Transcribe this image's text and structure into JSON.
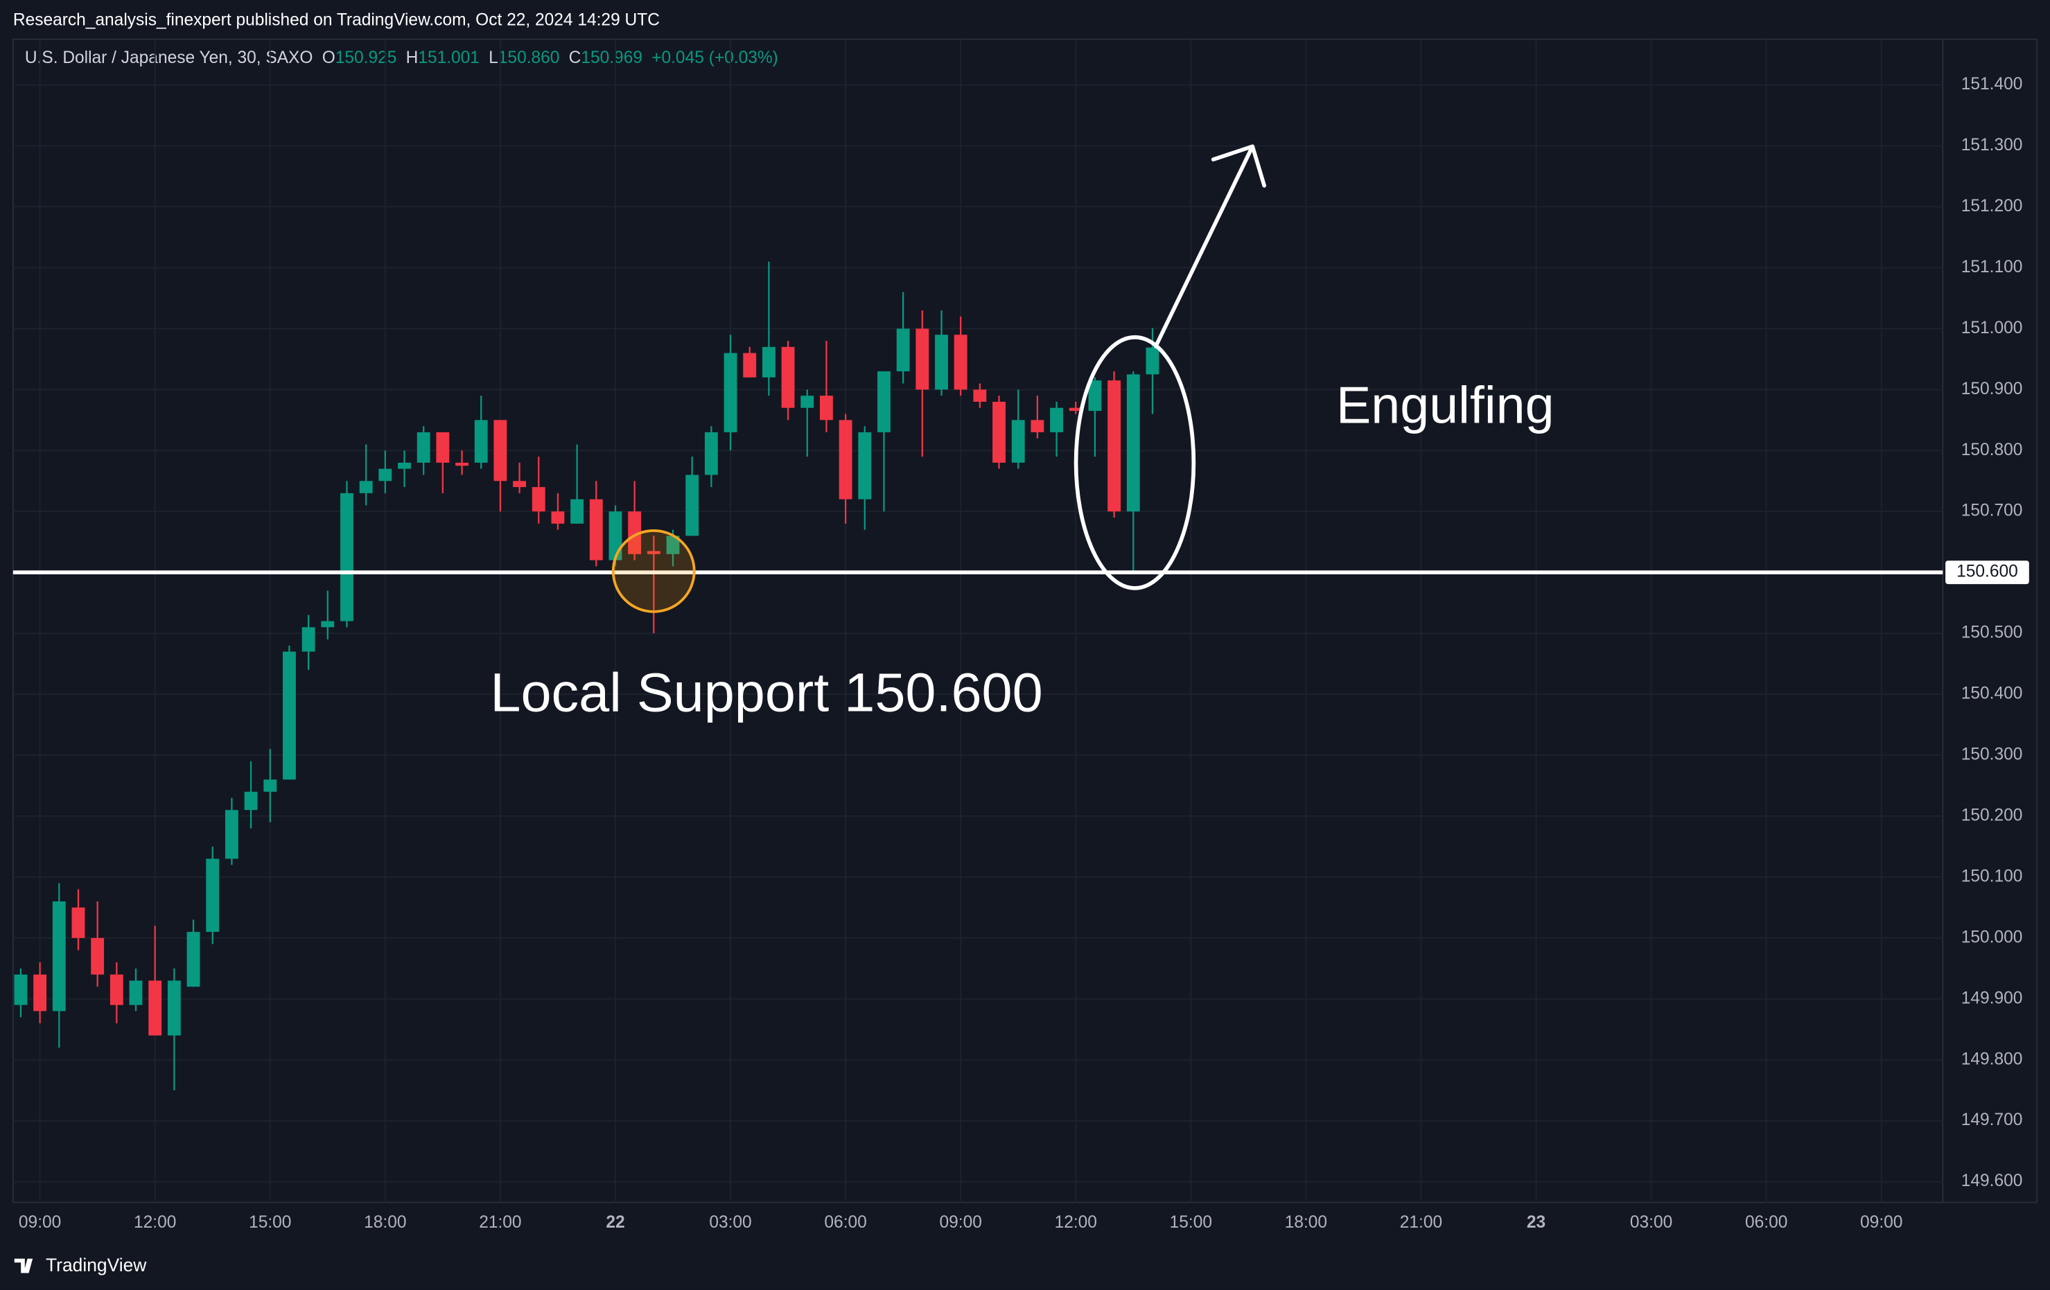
{
  "header": "Research_analysis_finexpert published on TradingView.com, Oct 22, 2024 14:29 UTC",
  "footer": "TradingView",
  "chart_data": {
    "type": "candlestick",
    "title": "U.S. Dollar / Japanese Yen, 30, SAXO",
    "quote": [
      {
        "key": "O",
        "value": "150.925"
      },
      {
        "key": "H",
        "value": "151.001"
      },
      {
        "key": "L",
        "value": "150.860"
      },
      {
        "key": "C",
        "value": "150.969"
      }
    ],
    "change": "+0.045 (+0.03%)",
    "up_color": "#089981",
    "down_color": "#f23645",
    "open": [
      149.89,
      149.94,
      149.88,
      150.05,
      150.0,
      149.94,
      149.89,
      149.93,
      149.84,
      149.92,
      150.01,
      150.13,
      150.21,
      150.24,
      150.26,
      150.47,
      150.51,
      150.52,
      150.73,
      150.75,
      150.77,
      150.78,
      150.83,
      150.78,
      150.78,
      150.85,
      150.75,
      150.74,
      150.7,
      150.68,
      150.72,
      150.62,
      150.7,
      150.635,
      150.63,
      150.66,
      150.76,
      150.83,
      150.96,
      150.92,
      150.97,
      150.87,
      150.89,
      150.85,
      150.72,
      150.83,
      150.93,
      151.0,
      150.9,
      150.99,
      150.9,
      150.88,
      150.78,
      150.85,
      150.83,
      150.87,
      150.865,
      150.915,
      150.7,
      150.925
    ],
    "high": [
      149.95,
      149.96,
      150.09,
      150.08,
      150.06,
      149.96,
      149.95,
      150.02,
      149.95,
      150.03,
      150.15,
      150.23,
      150.29,
      150.31,
      150.48,
      150.53,
      150.57,
      150.75,
      150.81,
      150.8,
      150.8,
      150.84,
      150.83,
      150.8,
      150.89,
      150.85,
      150.78,
      150.79,
      150.73,
      150.81,
      150.75,
      150.71,
      150.75,
      150.66,
      150.67,
      150.79,
      150.84,
      150.99,
      150.97,
      151.11,
      150.98,
      150.9,
      150.98,
      150.86,
      150.84,
      150.93,
      151.06,
      151.03,
      151.03,
      151.02,
      150.91,
      150.89,
      150.9,
      150.89,
      150.88,
      150.88,
      150.92,
      150.93,
      150.93,
      151.001
    ],
    "low": [
      149.87,
      149.86,
      149.82,
      149.98,
      149.92,
      149.86,
      149.88,
      149.84,
      149.75,
      149.92,
      149.99,
      150.12,
      150.18,
      150.19,
      150.26,
      150.44,
      150.49,
      150.51,
      150.71,
      150.73,
      150.74,
      150.76,
      150.73,
      150.76,
      150.77,
      150.7,
      150.73,
      150.68,
      150.67,
      150.68,
      150.61,
      150.61,
      150.62,
      150.5,
      150.61,
      150.66,
      150.74,
      150.8,
      150.92,
      150.89,
      150.85,
      150.79,
      150.83,
      150.68,
      150.67,
      150.7,
      150.91,
      150.79,
      150.89,
      150.89,
      150.87,
      150.77,
      150.77,
      150.82,
      150.79,
      150.86,
      150.79,
      150.69,
      150.6,
      150.86
    ],
    "close": [
      149.94,
      149.88,
      150.06,
      150.0,
      149.94,
      149.89,
      149.93,
      149.84,
      149.93,
      150.01,
      150.13,
      150.21,
      150.24,
      150.26,
      150.47,
      150.51,
      150.52,
      150.73,
      150.75,
      150.77,
      150.78,
      150.83,
      150.78,
      150.775,
      150.85,
      150.75,
      150.74,
      150.7,
      150.68,
      150.72,
      150.62,
      150.7,
      150.63,
      150.63,
      150.66,
      150.76,
      150.83,
      150.96,
      150.92,
      150.97,
      150.87,
      150.89,
      150.85,
      150.72,
      150.83,
      150.93,
      151.0,
      150.9,
      150.99,
      150.9,
      150.88,
      150.78,
      150.85,
      150.83,
      150.87,
      150.865,
      150.915,
      150.7,
      150.925,
      150.969
    ],
    "ylim": [
      149.566,
      151.475
    ],
    "yticks": [
      {
        "value": 149.6,
        "label": "149.600"
      },
      {
        "value": 149.7,
        "label": "149.700"
      },
      {
        "value": 149.8,
        "label": "149.800"
      },
      {
        "value": 149.9,
        "label": "149.900"
      },
      {
        "value": 150.0,
        "label": "150.000"
      },
      {
        "value": 150.1,
        "label": "150.100"
      },
      {
        "value": 150.2,
        "label": "150.200"
      },
      {
        "value": 150.3,
        "label": "150.300"
      },
      {
        "value": 150.4,
        "label": "150.400"
      },
      {
        "value": 150.5,
        "label": "150.500"
      },
      {
        "value": 150.7,
        "label": "150.700"
      },
      {
        "value": 150.8,
        "label": "150.800"
      },
      {
        "value": 150.9,
        "label": "150.900"
      },
      {
        "value": 151.0,
        "label": "151.000"
      },
      {
        "value": 151.1,
        "label": "151.100"
      },
      {
        "value": 151.2,
        "label": "151.200"
      },
      {
        "value": 151.3,
        "label": "151.300"
      },
      {
        "value": 151.4,
        "label": "151.400"
      }
    ],
    "xlim": [
      -0.4,
      100.2
    ],
    "xticks": [
      {
        "value": 1,
        "label": "09:00"
      },
      {
        "value": 7,
        "label": "12:00"
      },
      {
        "value": 13,
        "label": "15:00"
      },
      {
        "value": 19,
        "label": "18:00"
      },
      {
        "value": 25,
        "label": "21:00"
      },
      {
        "value": 31,
        "label": "22"
      },
      {
        "value": 37,
        "label": "03:00"
      },
      {
        "value": 43,
        "label": "06:00"
      },
      {
        "value": 49,
        "label": "09:00"
      },
      {
        "value": 55,
        "label": "12:00"
      },
      {
        "value": 61,
        "label": "15:00"
      },
      {
        "value": 67,
        "label": "18:00"
      },
      {
        "value": 73,
        "label": "21:00"
      },
      {
        "value": 79,
        "label": "23"
      },
      {
        "value": 85,
        "label": "03:00"
      },
      {
        "value": 91,
        "label": "06:00"
      },
      {
        "value": 97,
        "label": "09:00"
      }
    ],
    "grid": true,
    "support": {
      "value": 150.6,
      "label": "150.600"
    },
    "annotations": [
      "Local Support 150.600",
      "Engulfing"
    ]
  }
}
